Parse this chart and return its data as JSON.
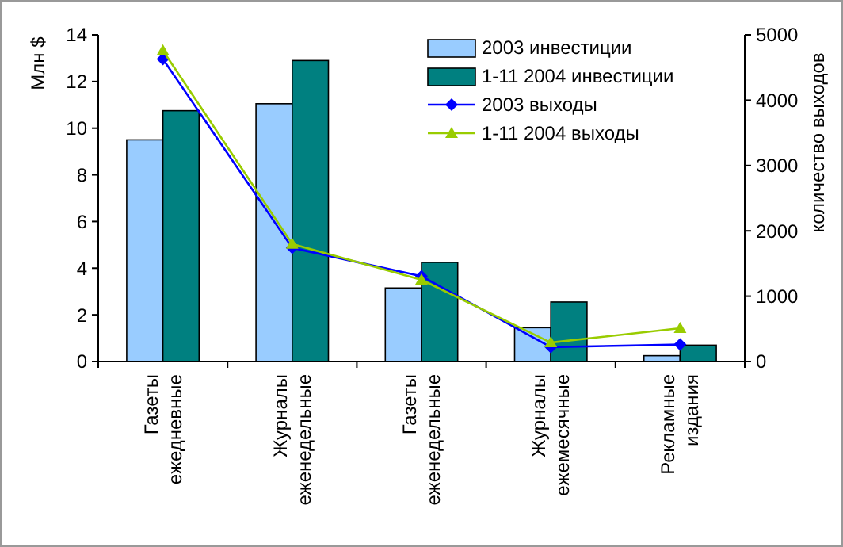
{
  "chart_data": {
    "type": "bar",
    "ylabel": "Млн $",
    "y2label": "количество выходов",
    "categories": [
      "Газеты ежедневные",
      "Журналы еженедельные",
      "Газеты еженедельные",
      "Журналы ежемесячные",
      "Рекламные издания"
    ],
    "series": [
      {
        "name": "2003 инвестиции",
        "color": "#99ccff",
        "values": [
          9.5,
          11.05,
          3.15,
          1.45,
          0.25
        ]
      },
      {
        "name": "1-11 2004 инвестиции",
        "color": "#008080",
        "values": [
          10.75,
          12.9,
          4.25,
          2.55,
          0.7
        ]
      },
      {
        "name": "2003 выходы",
        "type": "line",
        "axis": "y2",
        "marker": "diamond",
        "color": "#0000ff",
        "values": [
          4630,
          1740,
          1305,
          220,
          260
        ]
      },
      {
        "name": "1-11 2004 выходы",
        "type": "line",
        "axis": "y2",
        "marker": "triangle",
        "color": "#99cc00",
        "values": [
          4760,
          1800,
          1250,
          290,
          510
        ]
      }
    ],
    "ylim": [
      0,
      14
    ],
    "yticks": [
      0,
      2,
      4,
      6,
      8,
      10,
      12,
      14
    ],
    "y2lim": [
      0,
      5000
    ],
    "y2ticks": [
      0,
      1000,
      2000,
      3000,
      4000,
      5000
    ],
    "grid": false,
    "legend": "top right"
  }
}
